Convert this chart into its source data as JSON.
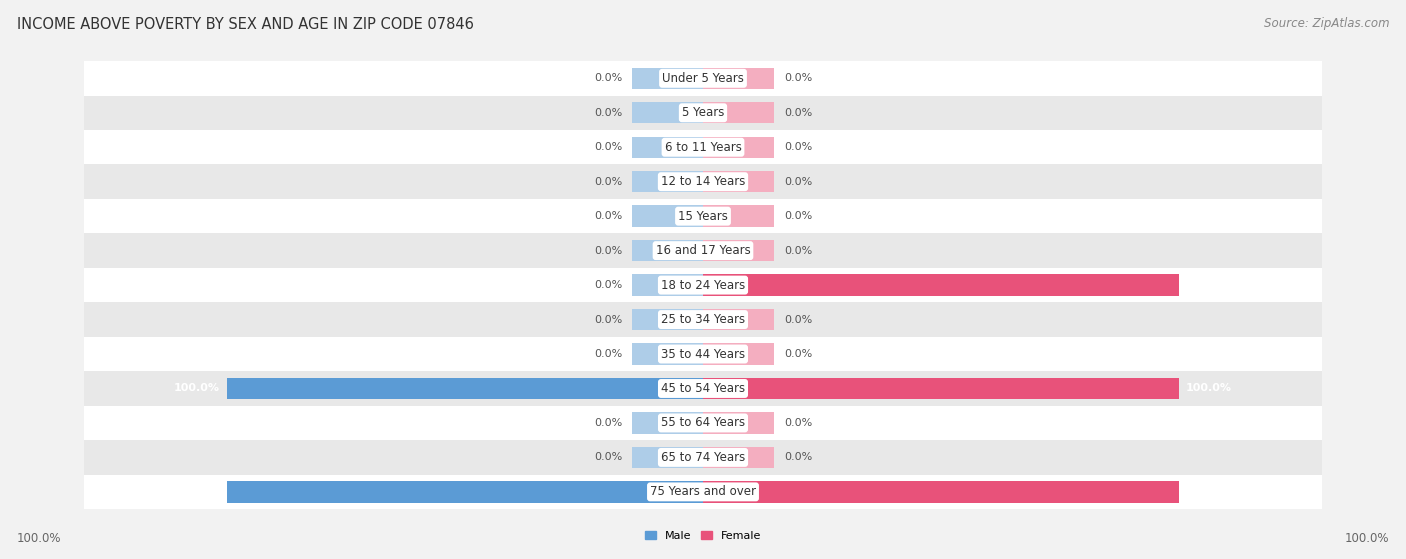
{
  "title": "INCOME ABOVE POVERTY BY SEX AND AGE IN ZIP CODE 07846",
  "source": "Source: ZipAtlas.com",
  "categories": [
    "Under 5 Years",
    "5 Years",
    "6 to 11 Years",
    "12 to 14 Years",
    "15 Years",
    "16 and 17 Years",
    "18 to 24 Years",
    "25 to 34 Years",
    "35 to 44 Years",
    "45 to 54 Years",
    "55 to 64 Years",
    "65 to 74 Years",
    "75 Years and over"
  ],
  "male_values": [
    0.0,
    0.0,
    0.0,
    0.0,
    0.0,
    0.0,
    0.0,
    0.0,
    0.0,
    100.0,
    0.0,
    0.0,
    100.0
  ],
  "female_values": [
    0.0,
    0.0,
    0.0,
    0.0,
    0.0,
    0.0,
    100.0,
    0.0,
    0.0,
    100.0,
    0.0,
    0.0,
    100.0
  ],
  "male_color_full": "#5b9bd5",
  "male_color_stub": "#aecde8",
  "female_color_full": "#e8527a",
  "female_color_stub": "#f4aec0",
  "male_label": "Male",
  "female_label": "Female",
  "bg_color": "#f2f2f2",
  "row_bg_white": "#ffffff",
  "row_bg_gray": "#e8e8e8",
  "bar_height": 0.62,
  "stub_value": 15.0,
  "xlim": 100,
  "title_fontsize": 10.5,
  "source_fontsize": 8.5,
  "category_fontsize": 8.5,
  "value_fontsize": 8.0,
  "footer_fontsize": 8.5
}
